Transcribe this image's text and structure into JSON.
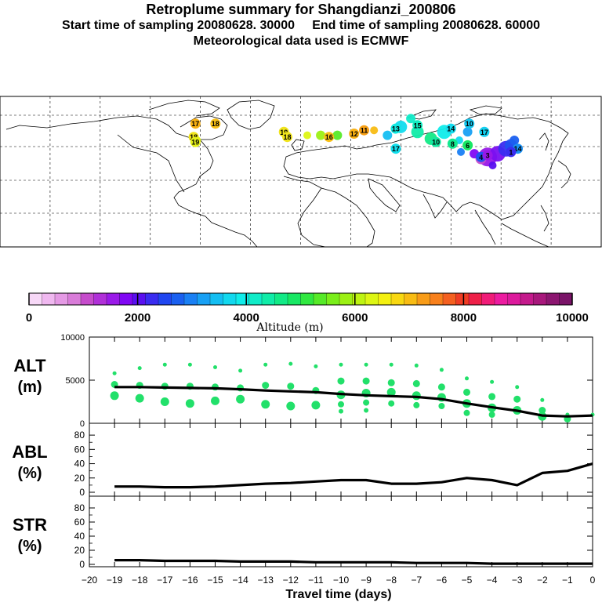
{
  "header": {
    "title": "Retroplume summary for Shangdianzi_200806",
    "start_label": "Start time of sampling 20080628. 30000",
    "end_label": "End time of sampling 20080628. 60000",
    "met_label": "Meteorological data used is ECMWF"
  },
  "colors": {
    "plume": "#22e06a",
    "line": "#000000",
    "colorbar": [
      "#f7d8f7",
      "#f0b8f0",
      "#e59ae5",
      "#d97cd9",
      "#c64ccc",
      "#b030d8",
      "#9a1ae8",
      "#8008f4",
      "#5a10f0",
      "#3a2cf0",
      "#2046f0",
      "#1a60f0",
      "#1a80f4",
      "#18a0f4",
      "#14bef2",
      "#12d8ee",
      "#10ecea",
      "#10ecc8",
      "#10eca8",
      "#12ea86",
      "#18e864",
      "#30e840",
      "#56ea28",
      "#7aee1a",
      "#9cf014",
      "#bef412",
      "#ddf614",
      "#f4f010",
      "#f8d812",
      "#f8bc14",
      "#f89c18",
      "#f8801c",
      "#f46020",
      "#f03c24",
      "#ee2048",
      "#f01c78",
      "#ec1ca0",
      "#dc1a9c",
      "#c41a8c",
      "#a8187c",
      "#8c1670",
      "#7a1468"
    ]
  },
  "map": {
    "labels": [
      {
        "t": "17",
        "c": "#f8b014",
        "lon": -63,
        "lat": 55
      },
      {
        "t": "18",
        "c": "#f8c018",
        "lon": -51,
        "lat": 55
      },
      {
        "t": "18",
        "c": "#f0e41c",
        "lon": -64,
        "lat": 47
      },
      {
        "t": "19",
        "c": "#e4f018",
        "lon": -63,
        "lat": 44
      },
      {
        "t": "19",
        "c": "#f0e41c",
        "lon": -10,
        "lat": 50
      },
      {
        "t": "18",
        "c": "#f0e41c",
        "lon": -8,
        "lat": 47
      },
      {
        "t": "16",
        "c": "#f8c018",
        "lon": 17,
        "lat": 47
      },
      {
        "t": "12",
        "c": "#f8b014",
        "lon": 32,
        "lat": 49
      },
      {
        "t": "11",
        "c": "#f8a014",
        "lon": 38,
        "lat": 51
      },
      {
        "t": "13",
        "c": "#10e8e0",
        "lon": 57,
        "lat": 52
      },
      {
        "t": "15",
        "c": "#12ecc0",
        "lon": 70,
        "lat": 54
      },
      {
        "t": "10",
        "c": "#12e8a0",
        "lon": 81,
        "lat": 44
      },
      {
        "t": "14",
        "c": "#12dcee",
        "lon": 90,
        "lat": 52
      },
      {
        "t": "10",
        "c": "#14c8f0",
        "lon": 101,
        "lat": 55
      },
      {
        "t": "17",
        "c": "#14d0f0",
        "lon": 110,
        "lat": 50
      },
      {
        "t": "14",
        "c": "#1a90f4",
        "lon": 130,
        "lat": 40
      },
      {
        "t": "4",
        "c": "#2050f0",
        "lon": 108,
        "lat": 35
      },
      {
        "t": "3",
        "c": "#9818e8",
        "lon": 112,
        "lat": 36
      },
      {
        "t": "1",
        "c": "#3a2cf0",
        "lon": 126,
        "lat": 38
      },
      {
        "t": "17",
        "c": "#12e0ee",
        "lon": 57,
        "lat": 40
      },
      {
        "t": "8",
        "c": "#12ea90",
        "lon": 91,
        "lat": 43
      },
      {
        "t": "6",
        "c": "#18e864",
        "lon": 100,
        "lat": 42
      }
    ]
  },
  "chart_data": [
    {
      "type": "line",
      "panel": "ALT",
      "ylabel": "ALT (m)",
      "ylabel_line1": "ALT",
      "ylabel_line2": "(m)",
      "ylim": [
        0,
        10000
      ],
      "yticks": [
        "0",
        "5000",
        "10000"
      ],
      "x": [
        -19,
        -18,
        -17,
        -16,
        -15,
        -14,
        -13,
        -12,
        -11,
        -10,
        -9,
        -8,
        -7,
        -6,
        -5,
        -4,
        -3,
        -2,
        -1,
        0
      ],
      "series": [
        {
          "name": "mean altitude",
          "values": [
            4200,
            4200,
            4150,
            4100,
            4050,
            3950,
            3800,
            3700,
            3600,
            3400,
            3250,
            3150,
            3050,
            2800,
            2300,
            1850,
            1450,
            900,
            800,
            900
          ]
        }
      ],
      "distribution_levels": [
        [
          5800,
          4500,
          3200
        ],
        [
          6400,
          4400,
          2900
        ],
        [
          6800,
          4300,
          2500
        ],
        [
          6800,
          4300,
          2300
        ],
        [
          6500,
          4200,
          2600
        ],
        [
          6100,
          4100,
          2800
        ],
        [
          6800,
          4400,
          2200
        ],
        [
          6900,
          4300,
          2000
        ],
        [
          6600,
          3800,
          2100
        ],
        [
          6800,
          4900,
          3300,
          2200,
          1400
        ],
        [
          6800,
          4900,
          3500,
          2400,
          1500
        ],
        [
          6800,
          4700,
          3600,
          2300
        ],
        [
          6700,
          4600,
          3200,
          2100
        ],
        [
          6200,
          4200,
          3000,
          2000
        ],
        [
          5200,
          3600,
          2300,
          1200
        ],
        [
          4800,
          3100,
          1800,
          1000
        ],
        [
          4200,
          2800,
          1500
        ],
        [
          2700,
          1500,
          800
        ],
        [
          1000,
          500
        ],
        [
          1000
        ]
      ]
    },
    {
      "type": "line",
      "panel": "ABL",
      "ylabel": "ABL (%)",
      "ylabel_line1": "ABL",
      "ylabel_line2": "(%)",
      "ylim": [
        0,
        90
      ],
      "yticks": [
        "0",
        "20",
        "40",
        "60",
        "80"
      ],
      "x": [
        -19,
        -18,
        -17,
        -16,
        -15,
        -14,
        -13,
        -12,
        -11,
        -10,
        -9,
        -8,
        -7,
        -6,
        -5,
        -4,
        -3,
        -2,
        -1,
        0
      ],
      "series": [
        {
          "name": "ABL fraction",
          "values": [
            8,
            8,
            7,
            7,
            8,
            10,
            12,
            13,
            15,
            17,
            17,
            12,
            12,
            14,
            20,
            17,
            10,
            27,
            30,
            40
          ]
        }
      ]
    },
    {
      "type": "line",
      "panel": "STR",
      "ylabel": "STR (%)",
      "ylabel_line1": "STR",
      "ylabel_line2": "(%)",
      "ylim": [
        0,
        90
      ],
      "yticks": [
        "0",
        "20",
        "40",
        "60",
        "80"
      ],
      "xlabel": "Travel time (days)",
      "xticks": [
        "−20",
        "−19",
        "−18",
        "−17",
        "−16",
        "−15",
        "−14",
        "−13",
        "−12",
        "−11",
        "−10",
        "−9",
        "−8",
        "−7",
        "−6",
        "−5",
        "−4",
        "−3",
        "−2",
        "−1",
        "0"
      ],
      "x": [
        -19,
        -18,
        -17,
        -16,
        -15,
        -14,
        -13,
        -12,
        -11,
        -10,
        -9,
        -8,
        -7,
        -6,
        -5,
        -4,
        -3,
        -2,
        -1,
        0
      ],
      "series": [
        {
          "name": "stratospheric fraction",
          "values": [
            6,
            6,
            5,
            5,
            5,
            4,
            4,
            4,
            3,
            3,
            3,
            3,
            2,
            2,
            2,
            1,
            1,
            1,
            1,
            1
          ]
        }
      ]
    }
  ],
  "colorbar": {
    "title": "Altitude (m)",
    "ticks": [
      "0",
      "2000",
      "4000",
      "6000",
      "8000",
      "10000"
    ],
    "range": [
      0,
      10000
    ]
  }
}
